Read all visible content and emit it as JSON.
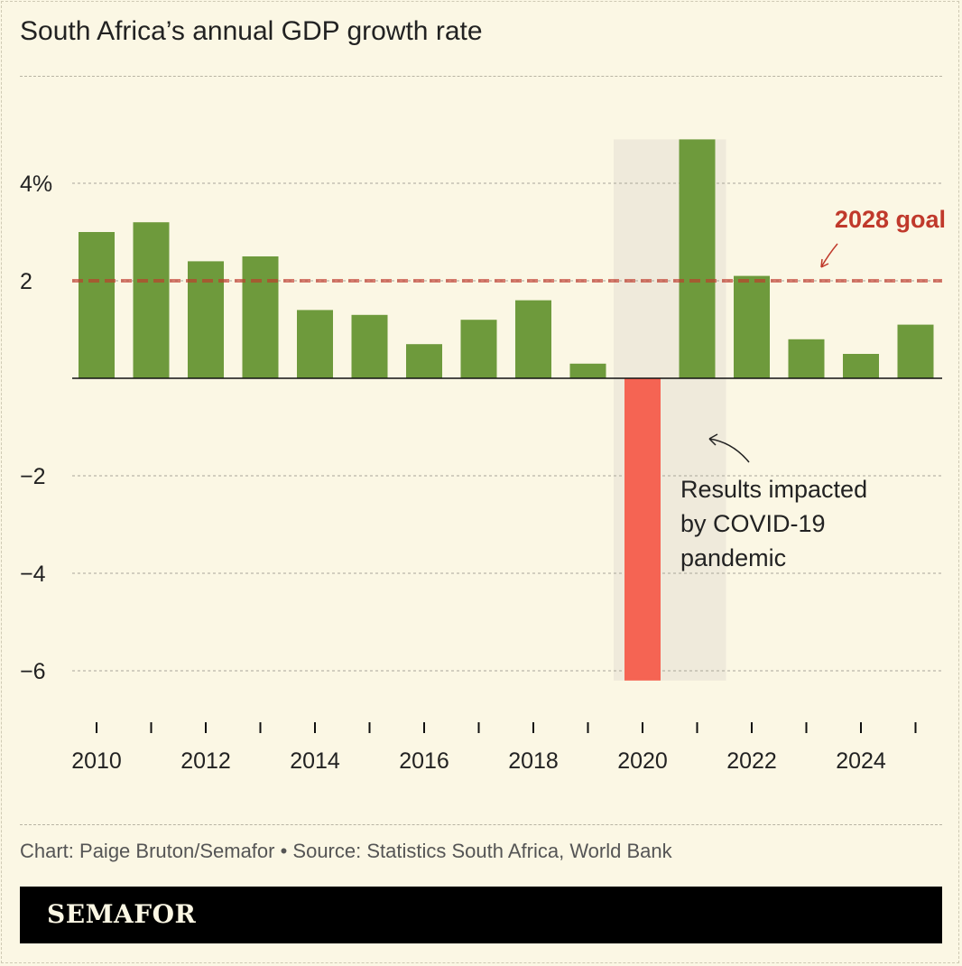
{
  "title": "South Africa’s annual GDP growth rate",
  "source": "Chart: Paige Bruton/Semafor • Source: Statistics South Africa, World Bank",
  "brand": "SEMAFOR",
  "colors": {
    "positive": "#6e9a3c",
    "negative": "#f56453",
    "goal": "#c0392b",
    "highlight": "#efeadb",
    "background": "#fbf7e4"
  },
  "chart_data": {
    "type": "bar",
    "categories": [
      2010,
      2011,
      2012,
      2013,
      2014,
      2015,
      2016,
      2017,
      2018,
      2019,
      2020,
      2021,
      2022,
      2023,
      2024,
      2025
    ],
    "values": [
      3.0,
      3.2,
      2.4,
      2.5,
      1.4,
      1.3,
      0.7,
      1.2,
      1.6,
      0.3,
      -6.2,
      4.9,
      2.1,
      0.8,
      0.5,
      1.1
    ],
    "ylim": [
      -7,
      5
    ],
    "yticks": [
      {
        "v": 4,
        "label": "4%"
      },
      {
        "v": 2,
        "label": "2"
      },
      {
        "v": -2,
        "label": "−2"
      },
      {
        "v": -4,
        "label": "−4"
      },
      {
        "v": -6,
        "label": "−6"
      }
    ],
    "xticks": [
      {
        "v": 2010,
        "label": "2010"
      },
      {
        "v": 2012,
        "label": "2012"
      },
      {
        "v": 2014,
        "label": "2014"
      },
      {
        "v": 2016,
        "label": "2016"
      },
      {
        "v": 2018,
        "label": "2018"
      },
      {
        "v": 2020,
        "label": "2020"
      },
      {
        "v": 2022,
        "label": "2022"
      },
      {
        "v": 2024,
        "label": "2024"
      }
    ],
    "grid": true,
    "reference_line": {
      "value": 2,
      "label": "2028 goal"
    },
    "highlight_range": {
      "from": 2020,
      "to": 2021
    },
    "annotation": {
      "lines": [
        "Results impacted",
        "by COVID-19",
        "pandemic"
      ]
    }
  }
}
